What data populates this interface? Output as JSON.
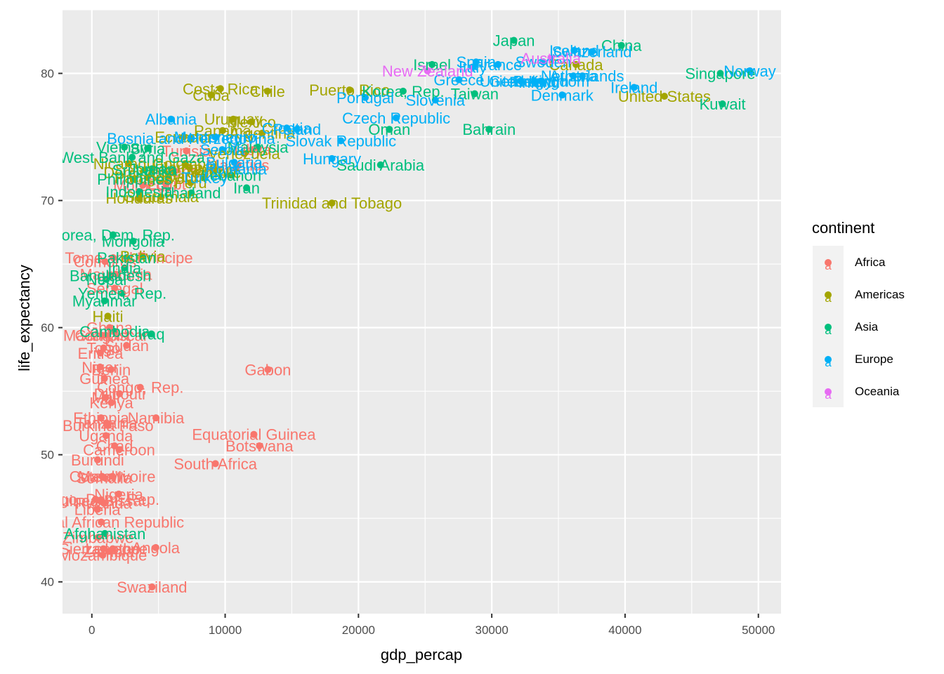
{
  "chart_data": {
    "type": "scatter",
    "title": "",
    "xlabel": "gdp_percap",
    "ylabel": "life_expectancy",
    "xlim": [
      -2200,
      51700
    ],
    "ylim": [
      37.5,
      85.0
    ],
    "xticks": [
      0,
      10000,
      20000,
      30000,
      40000,
      50000
    ],
    "yticks": [
      40,
      50,
      60,
      70,
      80
    ],
    "grid": true,
    "legend": {
      "title": "continent",
      "position": "right",
      "glyph": "a"
    },
    "series": [
      {
        "name": "Africa",
        "color": "#F8766D",
        "points": [
          {
            "x": 6223,
            "y": 72.3,
            "label": "Algeria"
          },
          {
            "x": 4797,
            "y": 42.7,
            "label": "Angola"
          },
          {
            "x": 1441,
            "y": 56.7,
            "label": "Benin"
          },
          {
            "x": 12570,
            "y": 50.7,
            "label": "Botswana"
          },
          {
            "x": 1217,
            "y": 52.3,
            "label": "Burkina Faso"
          },
          {
            "x": 430,
            "y": 49.6,
            "label": "Burundi"
          },
          {
            "x": 2042,
            "y": 50.4,
            "label": "Cameroon"
          },
          {
            "x": 706,
            "y": 44.7,
            "label": "Central African Republic"
          },
          {
            "x": 1704,
            "y": 50.7,
            "label": "Chad"
          },
          {
            "x": 986,
            "y": 65.2,
            "label": "Comoros"
          },
          {
            "x": 278,
            "y": 46.5,
            "label": "Congo, Dem. Rep."
          },
          {
            "x": 3633,
            "y": 55.3,
            "label": "Congo, Rep."
          },
          {
            "x": 1545,
            "y": 48.3,
            "label": "Cote d'Ivoire"
          },
          {
            "x": 2082,
            "y": 54.8,
            "label": "Djibouti"
          },
          {
            "x": 5581,
            "y": 71.3,
            "label": "Egypt"
          },
          {
            "x": 12154,
            "y": 51.6,
            "label": "Equatorial Guinea"
          },
          {
            "x": 641,
            "y": 58.0,
            "label": "Eritrea"
          },
          {
            "x": 691,
            "y": 52.9,
            "label": "Ethiopia"
          },
          {
            "x": 13206,
            "y": 56.7,
            "label": "Gabon"
          },
          {
            "x": 753,
            "y": 59.4,
            "label": "Gambia"
          },
          {
            "x": 1327,
            "y": 60.0,
            "label": "Ghana"
          },
          {
            "x": 943,
            "y": 56.0,
            "label": "Guinea"
          },
          {
            "x": 579,
            "y": 46.4,
            "label": "Guinea-Bissau"
          },
          {
            "x": 1463,
            "y": 54.1,
            "label": "Kenya"
          },
          {
            "x": 1569,
            "y": 42.6,
            "label": "Lesotho"
          },
          {
            "x": 415,
            "y": 45.7,
            "label": "Liberia"
          },
          {
            "x": 12057,
            "y": 74.0,
            "label": "Libya"
          },
          {
            "x": 1045,
            "y": 59.4,
            "label": "Madagascar"
          },
          {
            "x": 759,
            "y": 48.3,
            "label": "Malawi"
          },
          {
            "x": 1043,
            "y": 54.5,
            "label": "Mali"
          },
          {
            "x": 1803,
            "y": 64.2,
            "label": "Mauritania"
          },
          {
            "x": 10957,
            "y": 72.8,
            "label": "Mauritius"
          },
          {
            "x": 3820,
            "y": 71.2,
            "label": "Morocco"
          },
          {
            "x": 824,
            "y": 42.1,
            "label": "Mozambique"
          },
          {
            "x": 4811,
            "y": 52.9,
            "label": "Namibia"
          },
          {
            "x": 620,
            "y": 56.9,
            "label": "Niger"
          },
          {
            "x": 2014,
            "y": 46.9,
            "label": "Nigeria"
          },
          {
            "x": 882,
            "y": 46.2,
            "label": "Rwanda"
          },
          {
            "x": 1598,
            "y": 65.5,
            "label": "Sao Tome and Principe"
          },
          {
            "x": 1712,
            "y": 63.1,
            "label": "Senegal"
          },
          {
            "x": 863,
            "y": 42.6,
            "label": "Sierra Leone"
          },
          {
            "x": 926,
            "y": 48.2,
            "label": "Somalia"
          },
          {
            "x": 9270,
            "y": 49.3,
            "label": "South Africa"
          },
          {
            "x": 2602,
            "y": 58.6,
            "label": "Sudan"
          },
          {
            "x": 4513,
            "y": 39.6,
            "label": "Swaziland"
          },
          {
            "x": 1107,
            "y": 52.5,
            "label": "Tanzania"
          },
          {
            "x": 883,
            "y": 58.4,
            "label": "Togo"
          },
          {
            "x": 7093,
            "y": 73.9,
            "label": "Tunisia"
          },
          {
            "x": 1056,
            "y": 51.5,
            "label": "Uganda"
          },
          {
            "x": 1271,
            "y": 42.4,
            "label": "Zambia"
          },
          {
            "x": 470,
            "y": 43.5,
            "label": "Zimbabwe"
          }
        ]
      },
      {
        "name": "Americas",
        "color": "#A3A500",
        "points": [
          {
            "x": 12779,
            "y": 75.3,
            "label": "Argentina"
          },
          {
            "x": 3822,
            "y": 65.6,
            "label": "Bolivia"
          },
          {
            "x": 9066,
            "y": 72.4,
            "label": "Brazil"
          },
          {
            "x": 36319,
            "y": 80.7,
            "label": "Canada"
          },
          {
            "x": 13172,
            "y": 78.6,
            "label": "Chile"
          },
          {
            "x": 7007,
            "y": 72.9,
            "label": "Colombia"
          },
          {
            "x": 9645,
            "y": 78.8,
            "label": "Costa Rica"
          },
          {
            "x": 8948,
            "y": 78.3,
            "label": "Cuba"
          },
          {
            "x": 6025,
            "y": 72.2,
            "label": "Dominican Republic"
          },
          {
            "x": 6873,
            "y": 75.0,
            "label": "Ecuador"
          },
          {
            "x": 5728,
            "y": 71.9,
            "label": "El Salvador"
          },
          {
            "x": 5186,
            "y": 70.3,
            "label": "Guatemala"
          },
          {
            "x": 1202,
            "y": 60.9,
            "label": "Haiti"
          },
          {
            "x": 3548,
            "y": 70.2,
            "label": "Honduras"
          },
          {
            "x": 7321,
            "y": 72.6,
            "label": "Jamaica"
          },
          {
            "x": 11978,
            "y": 76.2,
            "label": "Mexico"
          },
          {
            "x": 2749,
            "y": 72.9,
            "label": "Nicaragua"
          },
          {
            "x": 9809,
            "y": 75.5,
            "label": "Panama"
          },
          {
            "x": 4173,
            "y": 71.8,
            "label": "Paraguay"
          },
          {
            "x": 7409,
            "y": 71.4,
            "label": "Peru"
          },
          {
            "x": 19329,
            "y": 78.7,
            "label": "Puerto Rico"
          },
          {
            "x": 18009,
            "y": 69.8,
            "label": "Trinidad and Tobago"
          },
          {
            "x": 42952,
            "y": 78.2,
            "label": "United States"
          },
          {
            "x": 10611,
            "y": 76.4,
            "label": "Uruguay"
          },
          {
            "x": 11416,
            "y": 73.7,
            "label": "Venezuela"
          }
        ]
      },
      {
        "name": "Asia",
        "color": "#00BF7D",
        "points": [
          {
            "x": 975,
            "y": 43.8,
            "label": "Afghanistan"
          },
          {
            "x": 29796,
            "y": 75.6,
            "label": "Bahrain"
          },
          {
            "x": 1391,
            "y": 64.1,
            "label": "Bangladesh"
          },
          {
            "x": 1714,
            "y": 59.7,
            "label": "Cambodia"
          },
          {
            "x": 39725,
            "y": 82.2,
            "label": "China"
          },
          {
            "x": 2452,
            "y": 64.7,
            "label": "India"
          },
          {
            "x": 3541,
            "y": 70.7,
            "label": "Indonesia"
          },
          {
            "x": 11606,
            "y": 71.0,
            "label": "Iran"
          },
          {
            "x": 4471,
            "y": 59.5,
            "label": "Iraq"
          },
          {
            "x": 25523,
            "y": 80.7,
            "label": "Israel"
          },
          {
            "x": 31656,
            "y": 82.6,
            "label": "Japan"
          },
          {
            "x": 4519,
            "y": 72.5,
            "label": "Jordan"
          },
          {
            "x": 1593,
            "y": 67.3,
            "label": "Korea, Dem. Rep."
          },
          {
            "x": 23348,
            "y": 78.6,
            "label": "Korea, Rep."
          },
          {
            "x": 47307,
            "y": 77.6,
            "label": "Kuwait"
          },
          {
            "x": 10461,
            "y": 72.0,
            "label": "Lebanon"
          },
          {
            "x": 12452,
            "y": 74.2,
            "label": "Malaysia"
          },
          {
            "x": 3096,
            "y": 66.8,
            "label": "Mongolia"
          },
          {
            "x": 944,
            "y": 62.1,
            "label": "Myanmar"
          },
          {
            "x": 1091,
            "y": 63.8,
            "label": "Nepal"
          },
          {
            "x": 22316,
            "y": 75.6,
            "label": "Oman"
          },
          {
            "x": 2606,
            "y": 65.5,
            "label": "Pakistan"
          },
          {
            "x": 3190,
            "y": 71.7,
            "label": "Philippines"
          },
          {
            "x": 21655,
            "y": 72.8,
            "label": "Saudi Arabia"
          },
          {
            "x": 47143,
            "y": 80.0,
            "label": "Singapore"
          },
          {
            "x": 3970,
            "y": 72.4,
            "label": "Sri Lanka"
          },
          {
            "x": 4185,
            "y": 74.1,
            "label": "Syria"
          },
          {
            "x": 28718,
            "y": 78.4,
            "label": "Taiwan"
          },
          {
            "x": 7458,
            "y": 70.6,
            "label": "Thailand"
          },
          {
            "x": 2442,
            "y": 74.2,
            "label": "Vietnam"
          },
          {
            "x": 3025,
            "y": 73.4,
            "label": "West Bank and Gaza"
          },
          {
            "x": 2281,
            "y": 62.7,
            "label": "Yemen, Rep."
          }
        ]
      },
      {
        "name": "Europe",
        "color": "#00B0F6",
        "points": [
          {
            "x": 5937,
            "y": 76.4,
            "label": "Albania"
          },
          {
            "x": 36126,
            "y": 79.8,
            "label": "Austria"
          },
          {
            "x": 33693,
            "y": 79.4,
            "label": "Belgium"
          },
          {
            "x": 7446,
            "y": 74.9,
            "label": "Bosnia and Herzegovina"
          },
          {
            "x": 10681,
            "y": 73.0,
            "label": "Bulgaria"
          },
          {
            "x": 14619,
            "y": 75.7,
            "label": "Croatia"
          },
          {
            "x": 22833,
            "y": 76.5,
            "label": "Czech Republic"
          },
          {
            "x": 35278,
            "y": 78.3,
            "label": "Denmark"
          },
          {
            "x": 33207,
            "y": 79.3,
            "label": "Finland"
          },
          {
            "x": 30470,
            "y": 80.7,
            "label": "France"
          },
          {
            "x": 32170,
            "y": 79.4,
            "label": "Germany"
          },
          {
            "x": 27538,
            "y": 79.5,
            "label": "Greece"
          },
          {
            "x": 18009,
            "y": 73.3,
            "label": "Hungary"
          },
          {
            "x": 36181,
            "y": 81.8,
            "label": "Iceland"
          },
          {
            "x": 40676,
            "y": 78.9,
            "label": "Ireland"
          },
          {
            "x": 28570,
            "y": 80.5,
            "label": "Italy"
          },
          {
            "x": 9254,
            "y": 75.0,
            "label": "Montenegro"
          },
          {
            "x": 36798,
            "y": 79.8,
            "label": "Netherlands"
          },
          {
            "x": 49357,
            "y": 80.2,
            "label": "Norway"
          },
          {
            "x": 15390,
            "y": 75.6,
            "label": "Poland"
          },
          {
            "x": 20510,
            "y": 78.1,
            "label": "Portugal"
          },
          {
            "x": 10808,
            "y": 72.5,
            "label": "Romania"
          },
          {
            "x": 9787,
            "y": 74.0,
            "label": "Serbia"
          },
          {
            "x": 18678,
            "y": 74.7,
            "label": "Slovak Republic"
          },
          {
            "x": 25768,
            "y": 77.9,
            "label": "Slovenia"
          },
          {
            "x": 28821,
            "y": 80.9,
            "label": "Spain"
          },
          {
            "x": 33860,
            "y": 80.9,
            "label": "Sweden"
          },
          {
            "x": 37506,
            "y": 81.7,
            "label": "Switzerland"
          },
          {
            "x": 8458,
            "y": 71.8,
            "label": "Turkey"
          },
          {
            "x": 33203,
            "y": 79.4,
            "label": "United Kingdom"
          }
        ]
      },
      {
        "name": "Oceania",
        "color": "#E76BF3",
        "points": [
          {
            "x": 34435,
            "y": 81.2,
            "label": "Australia"
          },
          {
            "x": 25185,
            "y": 80.2,
            "label": "New Zealand"
          }
        ]
      }
    ]
  }
}
